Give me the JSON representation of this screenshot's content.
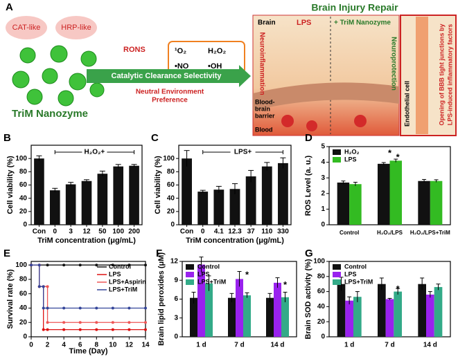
{
  "schematic": {
    "panel_label": "A",
    "bubbles": [
      "CAT-like",
      "HRP-like"
    ],
    "nanozyme": "TriM Nanozyme",
    "rons": "RONS",
    "species": [
      "¹O₂",
      "H₂O₂",
      "•NO",
      "•OH"
    ],
    "arrow_text": "Catalytic Clearance Selectivity",
    "preference": [
      "Neutral Environment",
      "Preference"
    ],
    "repair_title": "Brain Injury Repair",
    "scene": {
      "brain": "Brain",
      "lps": "LPS",
      "trim": "+ TriM Nanozyme",
      "neuroinflammation": "Neuroinflammation",
      "neuroprotection": "Neuroprotection",
      "bbb": [
        "Blood-",
        "brain",
        "barrier"
      ],
      "blood": "Blood",
      "endothelial": "Endothelial cell",
      "opening": [
        "Opening of BBB tight junctions by",
        "LPS-induced inflammatory factors"
      ]
    }
  },
  "chart_data": [
    {
      "type": "bar",
      "panel_label": "B",
      "ylabel": "Cell viability (%)",
      "xlabel": "TriM concentration (μg/mL)",
      "annotation": "H₂O₂+",
      "categories": [
        "Con",
        "0",
        "3",
        "12",
        "50",
        "100",
        "200"
      ],
      "values": [
        100,
        52,
        61,
        66,
        77,
        88,
        89
      ],
      "errors": [
        4,
        3,
        3,
        2,
        4,
        3,
        2
      ],
      "color": "#111111",
      "ylim": [
        0,
        120
      ],
      "yticks": [
        0,
        20,
        40,
        60,
        80,
        100
      ]
    },
    {
      "type": "bar",
      "panel_label": "C",
      "ylabel": "Cell viability (%)",
      "xlabel": "TriM concentration (μg/mL)",
      "annotation": "LPS+",
      "categories": [
        "Con",
        "0",
        "4.1",
        "12.3",
        "37",
        "110",
        "330"
      ],
      "values": [
        100,
        50,
        53,
        54,
        73,
        88,
        93
      ],
      "errors": [
        12,
        2,
        5,
        8,
        9,
        6,
        8
      ],
      "color": "#111111",
      "ylim": [
        0,
        120
      ],
      "yticks": [
        0,
        20,
        40,
        60,
        80,
        100
      ]
    },
    {
      "type": "grouped_bar",
      "panel_label": "D",
      "ylabel": "ROS Level (a. u.)",
      "categories": [
        "Control",
        "H₂O₂/LPS",
        "H₂O₂/LPS+TriM"
      ],
      "series": [
        {
          "name": "H₂O₂",
          "color": "#111111",
          "values": [
            2.7,
            3.9,
            2.8
          ],
          "errors": [
            0.1,
            0.08,
            0.1
          ]
        },
        {
          "name": "LPS",
          "color": "#33bb22",
          "values": [
            2.6,
            4.1,
            2.8
          ],
          "errors": [
            0.12,
            0.1,
            0.08
          ]
        }
      ],
      "ylim": [
        0,
        5
      ],
      "yticks": [
        0,
        1,
        2,
        3,
        4,
        5
      ],
      "legend": "upper left",
      "annotations": [
        "*",
        "*"
      ]
    },
    {
      "type": "line",
      "panel_label": "E",
      "ylabel": "Survival rate (%)",
      "xlabel": "Time (Day)",
      "series": [
        {
          "name": "Control",
          "color": "#111111",
          "x": [
            0,
            2,
            4,
            6,
            8,
            10,
            12,
            14
          ],
          "values": [
            100,
            100,
            100,
            100,
            100,
            100,
            100,
            100
          ]
        },
        {
          "name": "LPS",
          "color": "#dd1111",
          "x": [
            0,
            1,
            1,
            1.5,
            1.5,
            2,
            4,
            6,
            8,
            10,
            12,
            14
          ],
          "values": [
            100,
            100,
            70,
            70,
            10,
            10,
            10,
            10,
            10,
            10,
            10,
            10
          ]
        },
        {
          "name": "LPS+Aspirin",
          "color": "#ee5555",
          "x": [
            0,
            1,
            1,
            2,
            2,
            4,
            6,
            8,
            10,
            12,
            14
          ],
          "values": [
            100,
            100,
            70,
            70,
            20,
            20,
            20,
            20,
            20,
            20,
            20
          ]
        },
        {
          "name": "LPS+TriM",
          "color": "#334499",
          "x": [
            0,
            1,
            1,
            1.5,
            1.5,
            2,
            4,
            6,
            8,
            10,
            12,
            14
          ],
          "values": [
            100,
            100,
            70,
            70,
            40,
            40,
            40,
            40,
            40,
            40,
            40,
            40
          ]
        }
      ],
      "xlim": [
        0,
        14
      ],
      "xticks": [
        0,
        2,
        4,
        6,
        8,
        10,
        12,
        14
      ],
      "ylim": [
        0,
        105
      ],
      "yticks": [
        0,
        20,
        40,
        60,
        80,
        100
      ],
      "legend": "upper right"
    },
    {
      "type": "grouped_bar",
      "panel_label": "F",
      "ylabel": "Brain lipid peroxides (μM)",
      "categories": [
        "1 d",
        "7 d",
        "14 d"
      ],
      "series": [
        {
          "name": "Control",
          "color": "#111111",
          "values": [
            6.2,
            6.2,
            6.2
          ],
          "errors": [
            0.9,
            0.7,
            0.7
          ]
        },
        {
          "name": "LPS",
          "color": "#9922ee",
          "values": [
            11.5,
            9.2,
            8.6
          ],
          "errors": [
            1.2,
            1.2,
            0.8
          ]
        },
        {
          "name": "LPS+TriM",
          "color": "#33aa88",
          "values": [
            8.5,
            6.6,
            6.3
          ],
          "errors": [
            1.2,
            0.4,
            0.8
          ]
        }
      ],
      "ylim": [
        0,
        12
      ],
      "yticks": [
        0,
        3,
        6,
        9,
        12
      ],
      "legend": "upper left",
      "annotations": [
        "*",
        "*"
      ]
    },
    {
      "type": "grouped_bar",
      "panel_label": "G",
      "ylabel": "Brain SOD activity (%)",
      "categories": [
        "1 d",
        "7 d",
        "14 d"
      ],
      "series": [
        {
          "name": "Control",
          "color": "#111111",
          "values": [
            70,
            70,
            70
          ],
          "errors": [
            9,
            8,
            8
          ]
        },
        {
          "name": "LPS",
          "color": "#9922ee",
          "values": [
            48,
            50,
            56
          ],
          "errors": [
            5,
            1,
            4
          ]
        },
        {
          "name": "LPS+TriM",
          "color": "#33aa88",
          "values": [
            53,
            60,
            66
          ],
          "errors": [
            7,
            4,
            4
          ]
        }
      ],
      "ylim": [
        0,
        100
      ],
      "yticks": [
        0,
        20,
        40,
        60,
        80,
        100
      ],
      "legend": "upper left",
      "annotations": [
        "*"
      ]
    }
  ]
}
